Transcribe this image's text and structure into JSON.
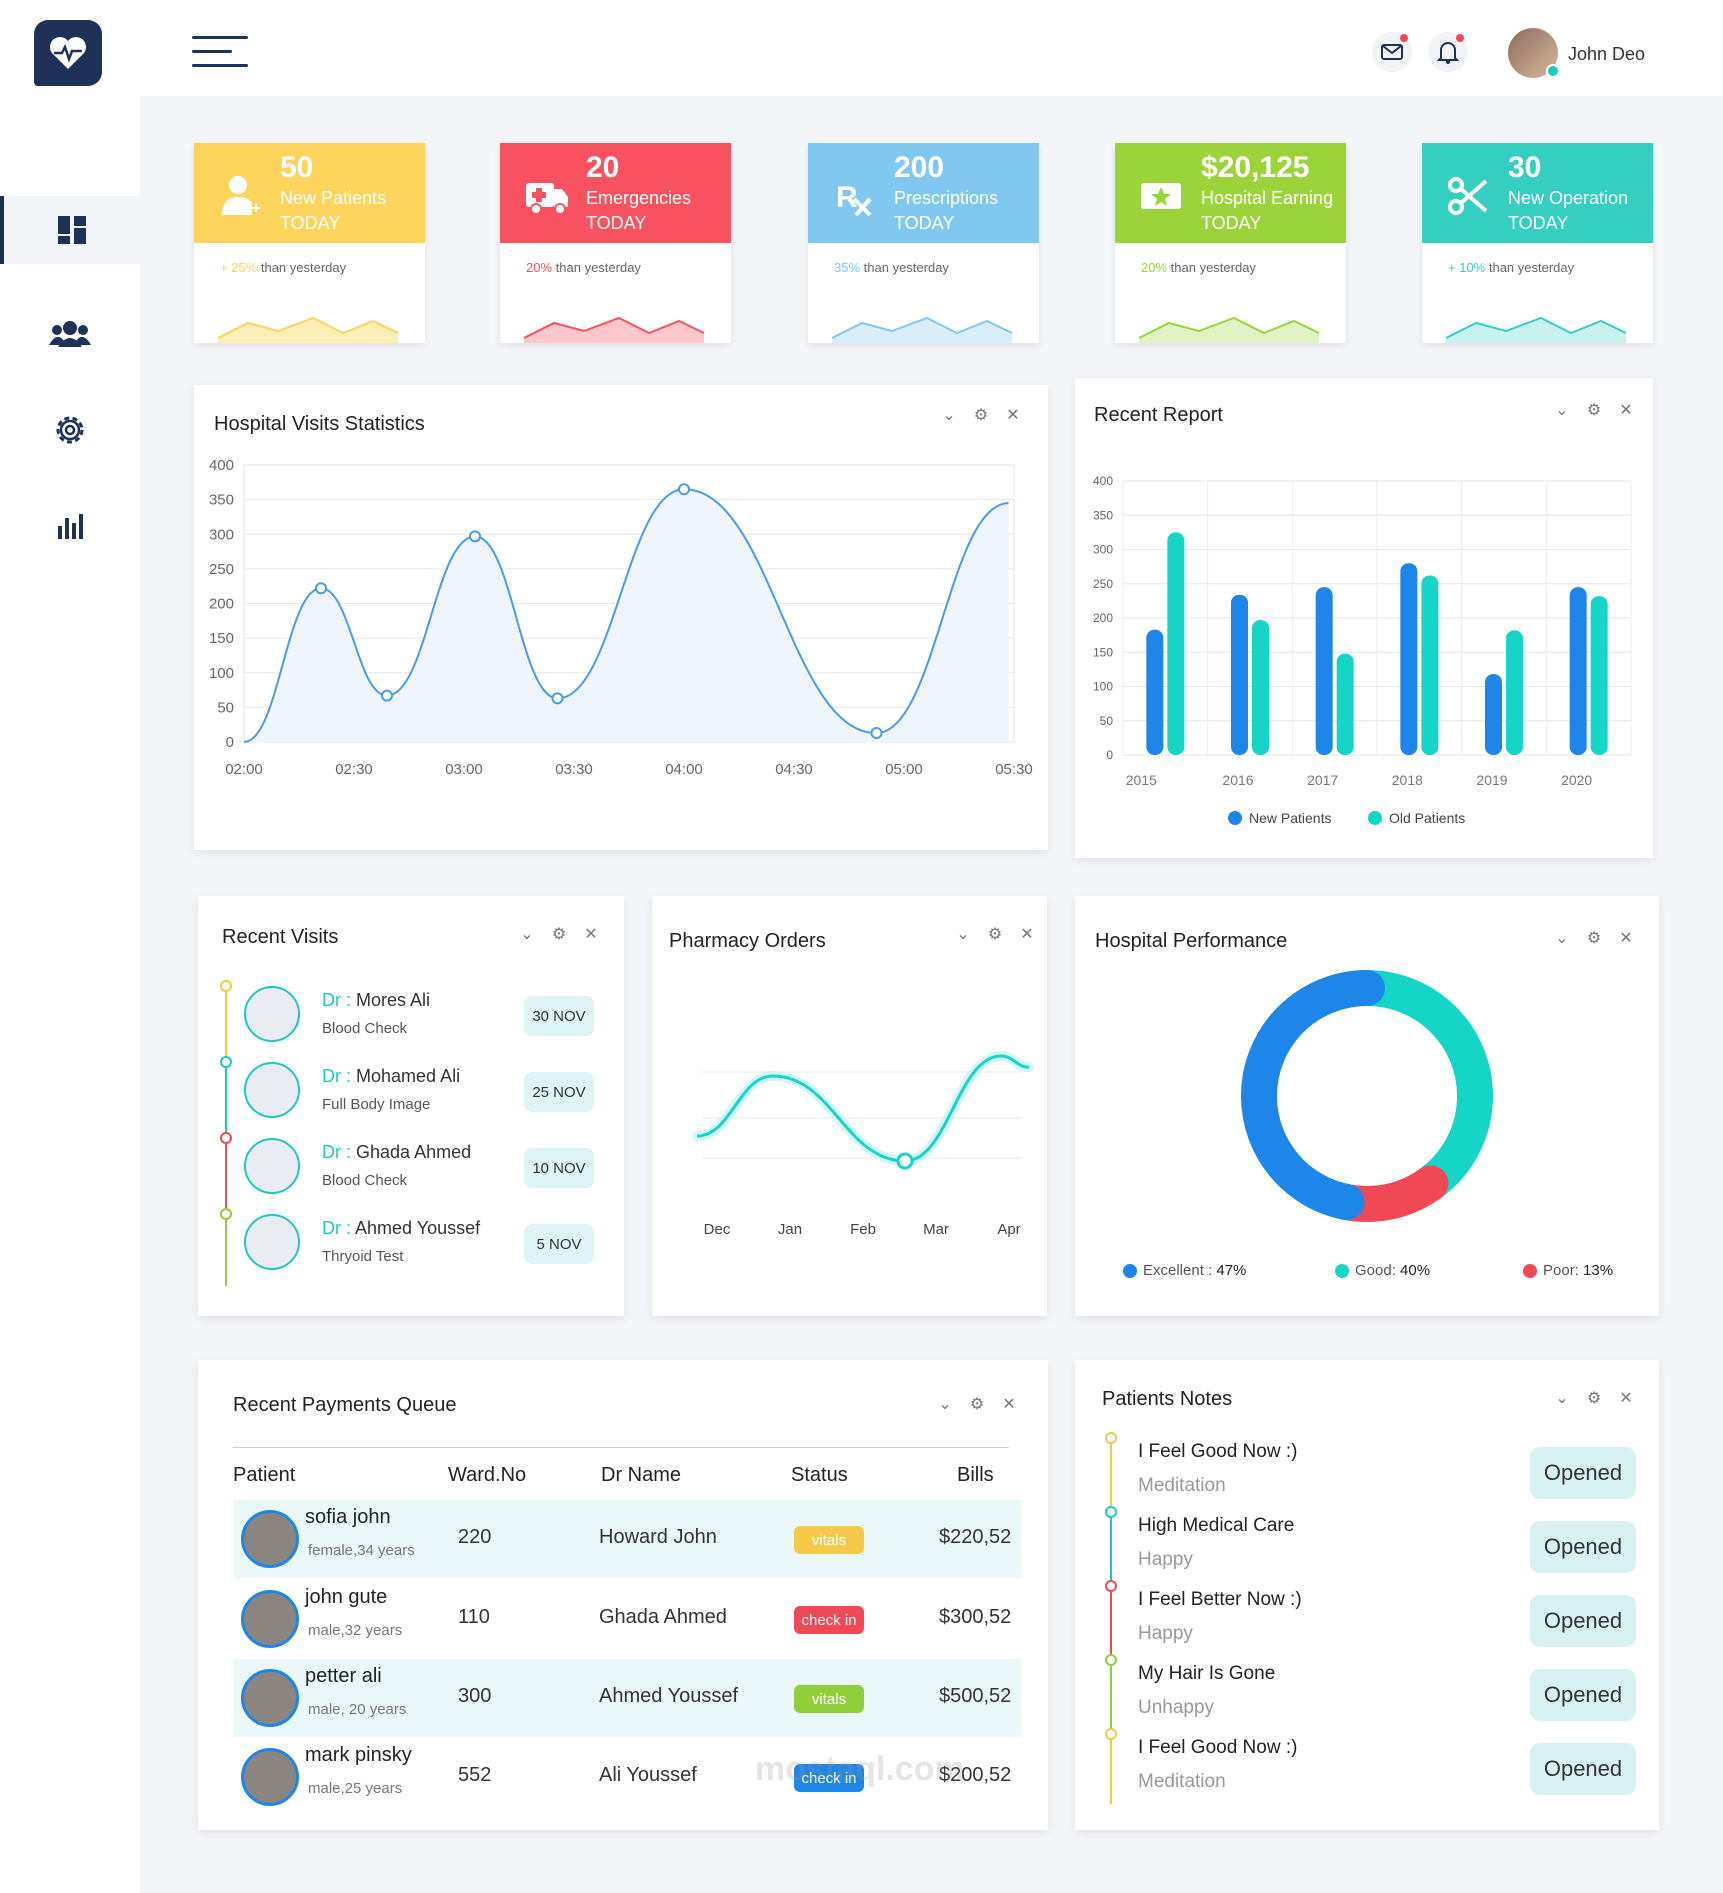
{
  "user": {
    "name": "John Deo"
  },
  "stats": [
    {
      "value": "50",
      "label1": "New Patients",
      "label2": "TODAY",
      "trend_pct": "+ 25%",
      "trend_text": "than yesterday",
      "color": "#fdd45c",
      "fill": "#fdeeb8",
      "icon": "user-plus-icon"
    },
    {
      "value": "20",
      "label1": "Emergencies",
      "label2": "TODAY",
      "trend_pct": "20%",
      "trend_text": "than yesterday",
      "color": "#f8515f",
      "fill": "#fcc7cb",
      "icon": "ambulance-icon"
    },
    {
      "value": "200",
      "label1": "Prescriptions",
      "label2": "TODAY",
      "trend_pct": "35%",
      "trend_text": "than yesterday",
      "color": "#80c8f0",
      "fill": "#d8eef9",
      "icon": "prescription-icon"
    },
    {
      "value": "$20,125",
      "label1": "Hospital Earning",
      "label2": "TODAY",
      "trend_pct": "20%",
      "trend_text": "than yesterday",
      "color": "#9bd43a",
      "fill": "#e0f3c5",
      "icon": "ticket-icon"
    },
    {
      "value": "30",
      "label1": "New Operation",
      "label2": "TODAY",
      "trend_pct": "+ 10%",
      "trend_text": "than yesterday",
      "color": "#35cfc2",
      "fill": "#c9f2ee",
      "icon": "scissors-icon"
    }
  ],
  "visits_panel": {
    "title": "Hospital Visits Statistics"
  },
  "report_panel": {
    "title": "Recent Report"
  },
  "recent_visits": {
    "title": "Recent Visits",
    "prefix": "Dr :",
    "items": [
      {
        "name": "Mores Ali",
        "test": "Blood Check",
        "date": "30 NOV"
      },
      {
        "name": "Mohamed Ali",
        "test": "Full Body Image",
        "date": "25 NOV"
      },
      {
        "name": "Ghada Ahmed",
        "test": "Blood Check",
        "date": "10 NOV"
      },
      {
        "name": "Ahmed Youssef",
        "test": "Thryoid Test",
        "date": "5 NOV"
      }
    ],
    "timeline_colors": [
      "#f7c948",
      "#1ccbbd",
      "#f04854",
      "#8fcf3a"
    ]
  },
  "pharmacy_panel": {
    "title": "Pharmacy Orders"
  },
  "performance_panel": {
    "title": "Hospital Performance",
    "legend": [
      {
        "label": "Excellent :",
        "value": "47%",
        "color": "#1e86e8"
      },
      {
        "label": "Good:",
        "value": "40%",
        "color": "#15d6c6"
      },
      {
        "label": "Poor:",
        "value": "13%",
        "color": "#f04854"
      }
    ]
  },
  "payments": {
    "title": "Recent Payments Queue",
    "headers": [
      "Patient",
      "Ward.No",
      "Dr Name",
      "Status",
      "Bills"
    ],
    "rows": [
      {
        "name": "sofia john",
        "info": "female,34 years",
        "ward": "220",
        "doctor": "Howard John",
        "status": "vitals",
        "status_color": "#f7c948",
        "bill": "$220,52"
      },
      {
        "name": "john gute",
        "info": "male,32 years",
        "ward": "110",
        "doctor": "Ghada Ahmed",
        "status": "check in",
        "status_color": "#f04854",
        "bill": "$300,52"
      },
      {
        "name": "petter ali",
        "info": "male, 20 years",
        "ward": "300",
        "doctor": "Ahmed Youssef",
        "status": "vitals",
        "status_color": "#8fcf3a",
        "bill": "$500,52"
      },
      {
        "name": "mark pinsky",
        "info": "male,25 years",
        "ward": "552",
        "doctor": "Ali Youssef",
        "status": "check in",
        "status_color": "#1e86e8",
        "bill": "$200,52"
      }
    ]
  },
  "notes": {
    "title": "Patients Notes",
    "items": [
      {
        "title": "I Feel Good Now :)",
        "sub": "Meditation",
        "button": "Opened",
        "color": "#f7c948"
      },
      {
        "title": "High Medical Care",
        "sub": "Happy",
        "button": "Opened",
        "color": "#1ccbbd"
      },
      {
        "title": "I Feel Better Now :)",
        "sub": "Happy",
        "button": "Opened",
        "color": "#f04854"
      },
      {
        "title": "My Hair Is Gone",
        "sub": "Unhappy",
        "button": "Opened",
        "color": "#8fcf3a"
      },
      {
        "title": "I Feel Good Now :)",
        "sub": "Meditation",
        "button": "Opened",
        "color": "#f7c948"
      }
    ]
  },
  "watermark": "mostaql.com",
  "chart_data": [
    {
      "type": "area",
      "title": "Hospital Visits Statistics",
      "x": [
        "02:00",
        "02:30",
        "03:00",
        "03:30",
        "04:00",
        "04:30",
        "05:00",
        "05:30"
      ],
      "points": [
        [
          0,
          0
        ],
        [
          0.7,
          222
        ],
        [
          1.3,
          67
        ],
        [
          2.1,
          297
        ],
        [
          2.85,
          63
        ],
        [
          4.0,
          365
        ],
        [
          5.75,
          13
        ],
        [
          6.95,
          345
        ]
      ],
      "ylim": [
        0,
        400
      ],
      "yticks": [
        0,
        50,
        100,
        150,
        200,
        250,
        300,
        350,
        400
      ],
      "color": "#4a9ae8"
    },
    {
      "type": "bar",
      "title": "Recent Report",
      "categories": [
        "2015",
        "2016",
        "2017",
        "2018",
        "2019",
        "2020"
      ],
      "series": [
        {
          "name": "New Patients",
          "values": [
            183,
            234,
            245,
            280,
            118,
            245
          ],
          "color": "#1e86e8"
        },
        {
          "name": "Old Patients",
          "values": [
            325,
            197,
            148,
            262,
            182,
            232
          ],
          "color": "#15d6c6"
        }
      ],
      "ylim": [
        0,
        400
      ],
      "yticks": [
        0,
        50,
        100,
        150,
        200,
        250,
        300,
        350,
        400
      ]
    },
    {
      "type": "line",
      "title": "Pharmacy Orders",
      "categories": [
        "Dec",
        "Jan",
        "Feb",
        "Mar",
        "Apr"
      ],
      "points": [
        [
          0,
          40
        ],
        [
          0.95,
          88
        ],
        [
          2.6,
          20
        ],
        [
          3.8,
          104
        ],
        [
          4.15,
          95
        ]
      ],
      "ylim": [
        0,
        120
      ],
      "color": "#15d6c6"
    },
    {
      "type": "pie",
      "title": "Hospital Performance",
      "labels": [
        "Excellent",
        "Good",
        "Poor"
      ],
      "values": [
        47,
        40,
        13
      ],
      "colors": [
        "#1e86e8",
        "#15d6c6",
        "#f04854"
      ]
    }
  ]
}
